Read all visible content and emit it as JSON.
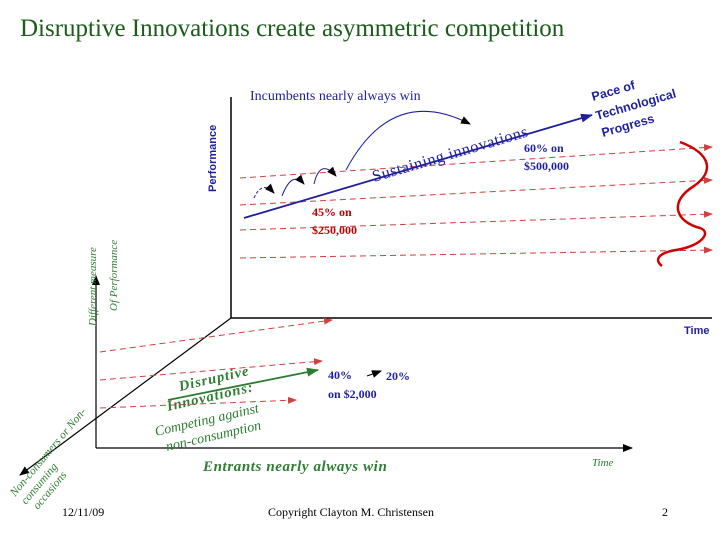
{
  "slide": {
    "title": "Disruptive Innovations create asymmetric competition",
    "footer_date": "12/11/09",
    "footer_copyright": "Copyright Clayton M. Christensen",
    "page_number": "2"
  },
  "upper_chart": {
    "y_axis_label": "Performance",
    "x_axis_label": "Time",
    "incumbents_label": "Incumbents nearly always win",
    "sustaining_label": "Sustaining innovations",
    "pace_line1": "Pace of",
    "pace_line2": "Technological",
    "pace_line3": "Progress",
    "point_45_line1": "45% on",
    "point_45_line2": "$250,000",
    "point_60_line1": "60% on",
    "point_60_line2": "$500,000"
  },
  "lower_chart": {
    "diff_measure_line1": "Different measure",
    "diff_measure_line2": "Of Performance",
    "disruptive_line1": "Disruptive",
    "disruptive_line2": "Innovations:",
    "competing_line1": "Competing against",
    "competing_line2": "non-consumption",
    "point_40": "40%",
    "point_20": "20%",
    "point_price": "on $2,000",
    "entrants_label": "Entrants nearly always win",
    "time_label": "Time",
    "nonconsumers_line1": "Non-consumers or Non-",
    "nonconsumers_line2": "consuming",
    "nonconsumers_line3": "occasions"
  },
  "colors": {
    "title": "#1a5c1a",
    "dark_red": "#c00000",
    "blue": "#1f1f9e",
    "green": "#2e7d32",
    "label_brown": "#6b3a1f",
    "dashed_red": "#d04040",
    "axis": "#000000"
  }
}
